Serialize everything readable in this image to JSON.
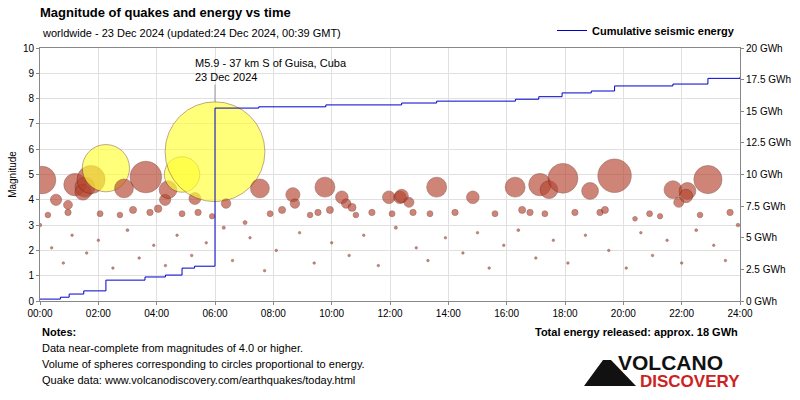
{
  "chart_data": {
    "type": "scatter",
    "title": "Magnitude of quakes and energy vs time",
    "subtitle": "worldwide - 23 Dec 2024 (updated:24 Dec 2024, 00:39 GMT)",
    "y_label": "Magnitude",
    "xlim": [
      0,
      24
    ],
    "xticks": [
      {
        "value": 0,
        "label": "00:00"
      },
      {
        "value": 2,
        "label": "02:00"
      },
      {
        "value": 4,
        "label": "04:00"
      },
      {
        "value": 6,
        "label": "06:00"
      },
      {
        "value": 8,
        "label": "08:00"
      },
      {
        "value": 10,
        "label": "10:00"
      },
      {
        "value": 12,
        "label": "12:00"
      },
      {
        "value": 14,
        "label": "14:00"
      },
      {
        "value": 16,
        "label": "16:00"
      },
      {
        "value": 18,
        "label": "18:00"
      },
      {
        "value": 20,
        "label": "20:00"
      },
      {
        "value": 22,
        "label": "22:00"
      },
      {
        "value": 24,
        "label": "24:00"
      }
    ],
    "ylim": [
      0,
      10
    ],
    "yticks": [
      0,
      1,
      2,
      3,
      4,
      5,
      6,
      7,
      8,
      9,
      10
    ],
    "y2lim": [
      0,
      20
    ],
    "y2ticks": [
      {
        "value": 0,
        "label": "0 GWh"
      },
      {
        "value": 2.5,
        "label": "2.5 GWh"
      },
      {
        "value": 5,
        "label": "5 GWh"
      },
      {
        "value": 7.5,
        "label": "7.5 GWh"
      },
      {
        "value": 10,
        "label": "10 GWh"
      },
      {
        "value": 12.5,
        "label": "12.5 GWh"
      },
      {
        "value": 15,
        "label": "15 GWh"
      },
      {
        "value": 17.5,
        "label": "17.5 GWh"
      },
      {
        "value": 20,
        "label": "20 GWh"
      }
    ],
    "grid": true,
    "legend": "top right",
    "series": [
      {
        "type": "scatter",
        "marker": "circle",
        "x": [
          0.07,
          0.55,
          0.96,
          1.2,
          1.54,
          1.47,
          1.75,
          2.26,
          2.88,
          3.63,
          4.29,
          4.39,
          4.87,
          5.31,
          6.0,
          6.38,
          7.54,
          8.67,
          8.74,
          9.77,
          10.35,
          10.5,
          10.7,
          11.96,
          12.34,
          12.4,
          12.65,
          13.6,
          14.84,
          16.29,
          17.14,
          17.45,
          17.93,
          18.86,
          19.7,
          21.7,
          22.2,
          22.15,
          22.9,
          21.9,
          0,
          0.96,
          0.27,
          2.06,
          2.74,
          3.19,
          3.77,
          4.05,
          4.87,
          5.42,
          5.9,
          7.03,
          7.89,
          8.3,
          9.26,
          9.53,
          9.94,
          10.83,
          11.38,
          12.07,
          12.79,
          13.37,
          14.23,
          15.6,
          16.53,
          16.8,
          17.31,
          18.34,
          19.2,
          19.37,
          20.4,
          20.9,
          21.26,
          22.63,
          23.66,
          23.93,
          0.4,
          0.8,
          1.1,
          1.6,
          2.0,
          2.5,
          3.0,
          3.4,
          3.9,
          4.3,
          4.7,
          5.2,
          5.7,
          6.3,
          6.6,
          7.2,
          7.7,
          8.1,
          8.9,
          9.4,
          10.0,
          10.6,
          11.1,
          11.6,
          12.2,
          12.9,
          13.3,
          13.9,
          14.5,
          15.0,
          15.4,
          15.9,
          16.4,
          17.0,
          17.6,
          18.1,
          18.7,
          19.5,
          20.1,
          20.6,
          21.0,
          21.5,
          22.0,
          22.5,
          23.1,
          23.5
        ],
        "values": [
          4.78,
          4.0,
          3.8,
          4.6,
          4.5,
          4.3,
          4.8,
          5.25,
          4.45,
          4.9,
          4.0,
          4.4,
          5.0,
          4.05,
          5.9,
          3.85,
          4.45,
          4.2,
          3.85,
          4.5,
          4.1,
          3.85,
          3.7,
          4.1,
          4.1,
          4.15,
          3.9,
          4.5,
          4.1,
          4.5,
          4.6,
          4.4,
          4.85,
          4.35,
          4.95,
          4.4,
          4.35,
          4.15,
          4.8,
          3.9,
          3.0,
          3.5,
          3.4,
          3.45,
          3.4,
          3.6,
          3.5,
          3.65,
          3.45,
          3.5,
          3.35,
          3.1,
          3.45,
          3.6,
          3.4,
          3.5,
          3.6,
          3.4,
          3.5,
          3.45,
          3.5,
          3.45,
          3.5,
          3.45,
          3.6,
          3.5,
          3.45,
          3.5,
          3.5,
          3.6,
          3.25,
          3.45,
          3.35,
          3.4,
          3.5,
          3.0,
          2.1,
          1.5,
          2.6,
          1.9,
          2.4,
          1.3,
          2.8,
          1.7,
          2.2,
          1.4,
          2.6,
          1.8,
          2.3,
          2.9,
          1.6,
          2.5,
          1.2,
          2.0,
          2.7,
          1.5,
          2.3,
          1.8,
          2.6,
          1.4,
          2.9,
          2.1,
          1.6,
          2.5,
          1.9,
          2.7,
          1.3,
          2.2,
          2.8,
          1.7,
          2.4,
          1.5,
          2.6,
          2.0,
          1.3,
          2.7,
          1.8,
          2.4,
          1.5,
          2.8,
          2.2,
          1.6
        ],
        "colors": [
          "#b5452f",
          "#b5452f",
          "#b5452f",
          "#b5452f",
          "#b5452f",
          "#b5452f",
          "#b5452f",
          "#ffff33",
          "#b5452f",
          "#b5452f",
          "#b5452f",
          "#b5452f",
          "#ffff33",
          "#b5452f",
          "#ffff33",
          "#b5452f",
          "#b5452f",
          "#b5452f",
          "#b5452f",
          "#b5452f",
          "#b5452f",
          "#b5452f",
          "#b5452f",
          "#b5452f",
          "#b5452f",
          "#b5452f",
          "#b5452f",
          "#b5452f",
          "#b5452f",
          "#b5452f",
          "#b5452f",
          "#b5452f",
          "#b5452f",
          "#b5452f",
          "#b5452f",
          "#b5452f",
          "#b5452f",
          "#b5452f",
          "#b5452f",
          "#b5452f",
          "#b5452f",
          "#b5452f",
          "#b5452f",
          "#b5452f",
          "#b5452f",
          "#b5452f",
          "#b5452f",
          "#b5452f",
          "#b5452f",
          "#b5452f",
          "#b5452f",
          "#b5452f",
          "#b5452f",
          "#b5452f",
          "#b5452f",
          "#b5452f",
          "#b5452f",
          "#b5452f",
          "#b5452f",
          "#b5452f",
          "#b5452f",
          "#b5452f",
          "#b5452f",
          "#b5452f",
          "#b5452f",
          "#b5452f",
          "#b5452f",
          "#b5452f",
          "#b5452f",
          "#b5452f",
          "#b5452f",
          "#b5452f",
          "#b5452f",
          "#b5452f",
          "#b5452f",
          "#b5452f",
          "#b5452f",
          "#b5452f",
          "#b5452f",
          "#b5452f",
          "#b5452f",
          "#b5452f",
          "#b5452f",
          "#b5452f",
          "#b5452f",
          "#b5452f",
          "#b5452f",
          "#b5452f",
          "#b5452f",
          "#b5452f",
          "#b5452f",
          "#b5452f",
          "#b5452f",
          "#b5452f",
          "#b5452f",
          "#b5452f",
          "#b5452f",
          "#b5452f",
          "#b5452f",
          "#b5452f",
          "#b5452f",
          "#b5452f",
          "#b5452f",
          "#b5452f",
          "#b5452f",
          "#b5452f",
          "#b5452f",
          "#b5452f",
          "#b5452f",
          "#b5452f",
          "#b5452f",
          "#b5452f",
          "#b5452f",
          "#b5452f",
          "#b5452f",
          "#b5452f",
          "#b5452f",
          "#b5452f",
          "#b5452f",
          "#b5452f",
          "#b5452f",
          "#b5452f"
        ]
      },
      {
        "name": "Cumulative seismic energy",
        "type": "line",
        "line_style": "step",
        "axis": "y2",
        "color": "#0000cc",
        "x": [
          0,
          0.7,
          1.0,
          1.5,
          2.26,
          3.6,
          4.3,
          4.87,
          5.3,
          6.0,
          7.5,
          9.8,
          12.4,
          13.6,
          16.3,
          17.1,
          17.9,
          18.9,
          19.7,
          21.7,
          22.9,
          24
        ],
        "values": [
          0.15,
          0.3,
          0.55,
          0.8,
          1.65,
          1.9,
          2.05,
          2.6,
          2.75,
          15.25,
          15.35,
          15.5,
          15.65,
          15.8,
          15.95,
          16.15,
          16.45,
          16.6,
          17.0,
          17.15,
          17.6,
          17.7
        ]
      }
    ],
    "annotations": [
      {
        "text": "M5.9 - 37 km S of Guisa, Cuba\n23 Dec 2024",
        "x": 6.0,
        "y": 5.9
      }
    ],
    "footer": {
      "notes_title": "Notes:",
      "notes": [
        "Data near-complete from magnitudes of 4.0 or higher.",
        "Volume of spheres corresponding to circles proportional to energy.",
        "Quake data: www.volcanodiscovery.com/earthquakes/today.html"
      ],
      "total_energy": "Total energy released: approx. 18 GWh",
      "logo": [
        "VOLCANO",
        "DISCOVERY"
      ]
    }
  }
}
